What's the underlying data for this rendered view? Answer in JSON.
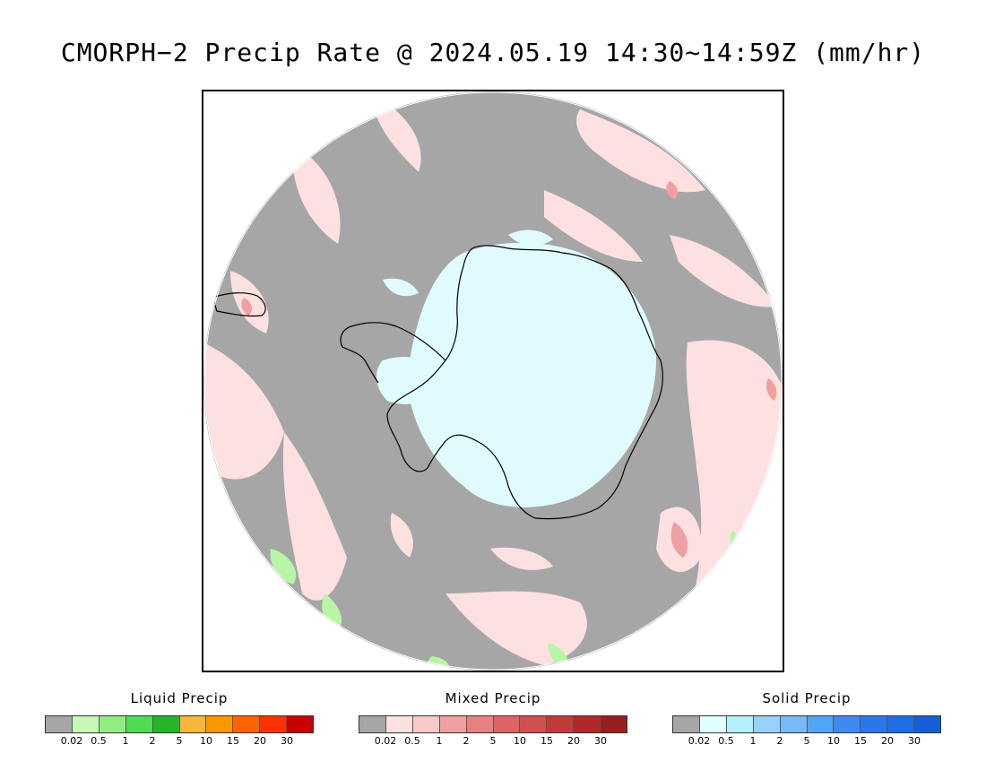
{
  "title": "CMORPH−2 Precip Rate @ 2024.05.19 14:30~14:59Z (mm/hr)",
  "colors": {
    "no_precip": "#a6a6a6",
    "mixed_light": "#fde0e0",
    "solid_light": "#e0fbfe",
    "liquid_light": "#b8f5a6",
    "coastline": "#000000"
  },
  "legends": [
    {
      "title": "Liquid Precip",
      "colors": [
        "#a6a6a6",
        "#c8f8b8",
        "#90ee80",
        "#50dc50",
        "#28b428",
        "#fbb43c",
        "#fa9600",
        "#fa6400",
        "#fa3200",
        "#c80000"
      ],
      "ticks": [
        "0.02",
        "0.5",
        "1",
        "2",
        "5",
        "10",
        "15",
        "20",
        "30"
      ]
    },
    {
      "title": "Mixed Precip",
      "colors": [
        "#a6a6a6",
        "#fde0e0",
        "#fac8c8",
        "#f0a0a0",
        "#e88080",
        "#dc6464",
        "#d05050",
        "#c03c3c",
        "#b02828",
        "#962020"
      ],
      "ticks": [
        "0.02",
        "0.5",
        "1",
        "2",
        "5",
        "10",
        "15",
        "20",
        "30"
      ]
    },
    {
      "title": "Solid Precip",
      "colors": [
        "#a6a6a6",
        "#e0fefe",
        "#b4f0fa",
        "#96d2fa",
        "#78b9fa",
        "#50a5f5",
        "#3c8cf0",
        "#2878eb",
        "#1e6ee6",
        "#1460d2"
      ],
      "ticks": [
        "0.02",
        "0.5",
        "1",
        "2",
        "5",
        "10",
        "15",
        "20",
        "30"
      ]
    }
  ]
}
